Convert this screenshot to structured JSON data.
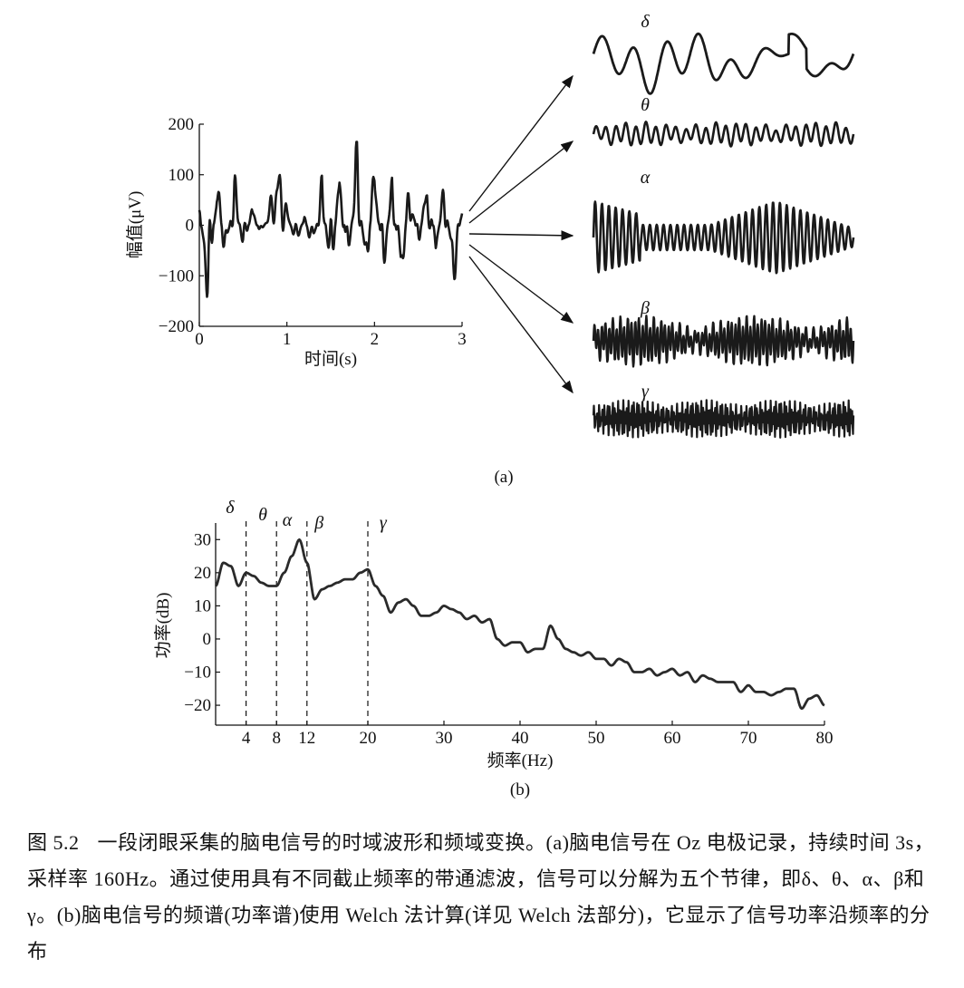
{
  "panel_a": {
    "label": "(a)",
    "ylabel": "幅值(μV)",
    "xlabel": "时间(s)",
    "yticks": [
      "200",
      "100",
      "0",
      "−100",
      "−200"
    ],
    "xticks": [
      "0",
      "1",
      "2",
      "3"
    ],
    "bands": [
      "δ",
      "θ",
      "α",
      "β",
      "γ"
    ]
  },
  "panel_b": {
    "label": "(b)",
    "ylabel": "功率(dB)",
    "xlabel": "频率(Hz)",
    "yticks": [
      "30",
      "20",
      "10",
      "0",
      "−10",
      "−20"
    ],
    "xticks": [
      "4",
      "8",
      "12",
      "20",
      "30",
      "40",
      "50",
      "60",
      "70",
      "80"
    ],
    "band_labels": [
      "δ",
      "θ",
      "α",
      "β",
      "γ"
    ]
  },
  "chart_data": [
    {
      "type": "line",
      "title": "",
      "xlabel": "时间(s)",
      "ylabel": "幅值(μV)",
      "xlim": [
        0,
        3
      ],
      "ylim": [
        -200,
        200
      ],
      "description_series": "EEG raw signal, Oz electrode",
      "x": [
        0,
        0.1,
        0.2,
        0.3,
        0.4,
        0.5,
        0.6,
        0.7,
        0.8,
        0.9,
        1.0,
        1.1,
        1.2,
        1.3,
        1.4,
        1.5,
        1.6,
        1.7,
        1.8,
        1.9,
        2.0,
        2.1,
        2.2,
        2.3,
        2.4,
        2.5,
        2.6,
        2.7,
        2.8,
        2.9,
        3.0
      ],
      "y": [
        40,
        -180,
        120,
        -100,
        110,
        -60,
        40,
        -20,
        30,
        140,
        30,
        -40,
        20,
        -60,
        100,
        -130,
        120,
        -90,
        160,
        -120,
        130,
        -100,
        100,
        -140,
        110,
        -50,
        100,
        -60,
        90,
        -120,
        45
      ]
    },
    {
      "type": "line",
      "title": "",
      "xlabel": "频率(Hz)",
      "ylabel": "功率(dB)",
      "xlim": [
        0,
        80
      ],
      "ylim": [
        -25,
        33
      ],
      "x": [
        0,
        1,
        2,
        3,
        4,
        5,
        6,
        7,
        8,
        9,
        10,
        11,
        12,
        13,
        14,
        15,
        16,
        17,
        18,
        19,
        20,
        21,
        22,
        23,
        24,
        25,
        26,
        27,
        28,
        29,
        30,
        31,
        32,
        33,
        34,
        35,
        36,
        37,
        38,
        39,
        40,
        41,
        42,
        43,
        44,
        45,
        46,
        47,
        48,
        49,
        50,
        51,
        52,
        53,
        54,
        55,
        56,
        57,
        58,
        59,
        60,
        61,
        62,
        63,
        64,
        65,
        66,
        67,
        68,
        69,
        70,
        71,
        72,
        73,
        74,
        75,
        76,
        77,
        78,
        79,
        80
      ],
      "y": [
        16,
        23,
        22,
        16,
        20,
        19,
        17,
        16,
        16,
        20,
        25,
        30,
        23,
        12,
        15,
        16,
        17,
        18,
        18,
        20,
        21,
        16,
        13,
        8,
        11,
        12,
        10,
        7,
        7,
        8,
        10,
        9,
        8,
        6,
        7,
        5,
        6,
        0,
        -2,
        -1,
        -1,
        -4,
        -3,
        -3,
        4,
        0,
        -3,
        -4,
        -5,
        -4,
        -6,
        -6,
        -8,
        -6,
        -7,
        -10,
        -10,
        -9,
        -11,
        -10,
        -9,
        -11,
        -10,
        -13,
        -11,
        -12,
        -13,
        -13,
        -13,
        -16,
        -14,
        -16,
        -16,
        -17,
        -16,
        -15,
        -15,
        -21,
        -18,
        -17,
        -20
      ]
    }
  ],
  "caption": {
    "fig_num": "图 5.2",
    "text": "一段闭眼采集的脑电信号的时域波形和频域变换。(a)脑电信号在 Oz 电极记录，持续时间 3s，采样率 160Hz。通过使用具有不同截止频率的带通滤波，信号可以分解为五个节律，即δ、θ、α、β和γ。(b)脑电信号的频谱(功率谱)使用 Welch 法计算(详见 Welch 法部分)，它显示了信号功率沿频率的分布"
  }
}
